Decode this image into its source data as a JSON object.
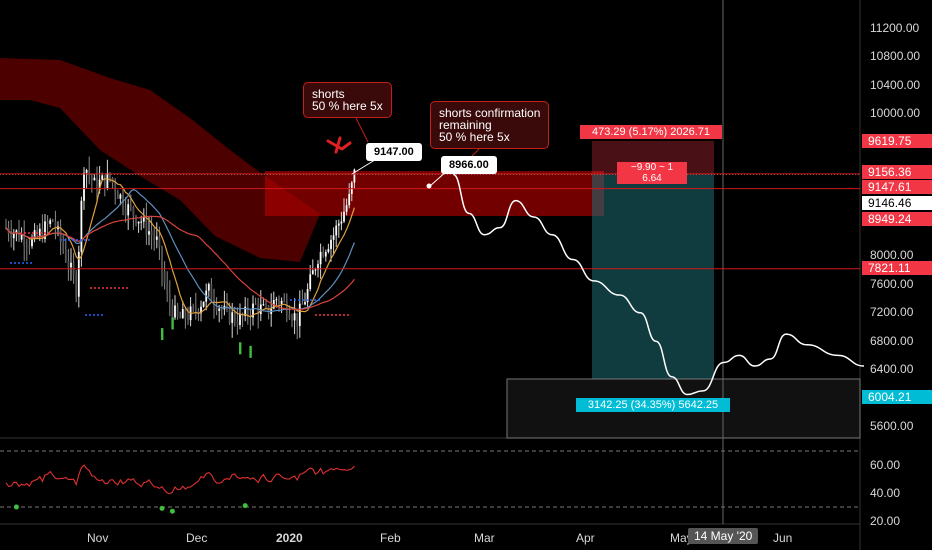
{
  "chart_data": {
    "type": "line",
    "price_axis": {
      "ticks": [
        "11200.00",
        "10800.00",
        "10400.00",
        "10000.00",
        "8000.00",
        "7600.00",
        "7200.00",
        "6800.00",
        "6400.00",
        "5600.00"
      ],
      "ylim": [
        5450,
        11450
      ]
    },
    "rsi_axis": {
      "ticks": [
        "60.00",
        "40.00",
        "20.00"
      ],
      "levels": [
        70,
        30
      ]
    },
    "time_axis": {
      "labels": [
        "Nov",
        "Dec",
        "2020",
        "Feb",
        "Mar",
        "Apr",
        "May",
        "Jun"
      ],
      "cursor": "14 May '20"
    },
    "price_tags": [
      {
        "label": "9619.75",
        "color": "#f23645"
      },
      {
        "label": "9156.36",
        "color": "#f23645"
      },
      {
        "label": "9147.61",
        "color": "#f23645"
      },
      {
        "label": "9146.46",
        "color": "#ffffff"
      },
      {
        "label": "8949.24",
        "color": "#f23645"
      },
      {
        "label": "7821.11",
        "color": "#f23645"
      },
      {
        "label": "6004.21",
        "color": "#00bcd4"
      }
    ],
    "horizontal_lines": [
      9156.36,
      8949.24,
      7821.11
    ],
    "forecast_path": [
      [
        172,
        9150
      ],
      [
        178,
        8600
      ],
      [
        184,
        8300
      ],
      [
        190,
        8400
      ],
      [
        196,
        8780
      ],
      [
        203,
        8550
      ],
      [
        210,
        8300
      ],
      [
        218,
        7950
      ],
      [
        226,
        7650
      ],
      [
        236,
        7450
      ],
      [
        244,
        7200
      ],
      [
        250,
        6800
      ],
      [
        256,
        6300
      ],
      [
        262,
        6050
      ],
      [
        268,
        6100
      ],
      [
        276,
        6500
      ],
      [
        282,
        6600
      ],
      [
        288,
        6450
      ],
      [
        294,
        6550
      ],
      [
        300,
        6900
      ],
      [
        308,
        6750
      ],
      [
        320,
        6600
      ],
      [
        330,
        6450
      ]
    ],
    "short_position": {
      "target_label": "3142.25 (34.35%) 5642.25",
      "stop_label": "473.29 (5.17%) 2026.71",
      "entry_label": "−9.90 ~ 1\n6.64",
      "entry": 9146.46,
      "stop": 9619.75,
      "target": 6004.21
    },
    "annotations": [
      {
        "text": "shorts\n50 % here 5x"
      },
      {
        "text": "shorts confirmation\nremaining\n50 % here 5x"
      },
      {
        "text": "9147.00"
      },
      {
        "text": "8966.00"
      }
    ]
  }
}
